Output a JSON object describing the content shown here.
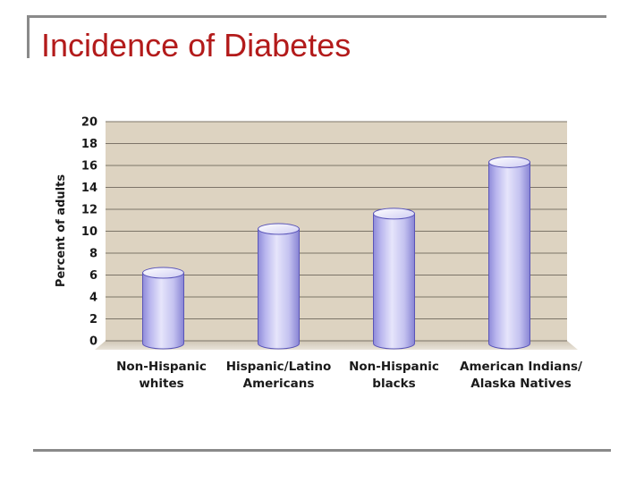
{
  "slide": {
    "title": "Incidence of Diabetes"
  },
  "colors": {
    "title": "#b31b1b",
    "plot_bg": "#ddd3c1",
    "bar_fill": "#c5c3ef",
    "bar_edge": "#5a55b8"
  },
  "chart_data": {
    "type": "bar",
    "title": "",
    "xlabel": "",
    "ylabel": "Percent of adults",
    "ylim": [
      0,
      20
    ],
    "yticks": [
      "0",
      "2",
      "4",
      "6",
      "8",
      "10",
      "12",
      "14",
      "16",
      "18",
      "20"
    ],
    "grid": true,
    "categories": [
      [
        "Non-Hispanic",
        "whites"
      ],
      [
        "Hispanic/Latino",
        "Americans"
      ],
      [
        "Non-Hispanic",
        "blacks"
      ],
      [
        "American Indians/",
        "Alaska Natives"
      ]
    ],
    "values": [
      6.2,
      10.2,
      11.6,
      16.3
    ]
  }
}
